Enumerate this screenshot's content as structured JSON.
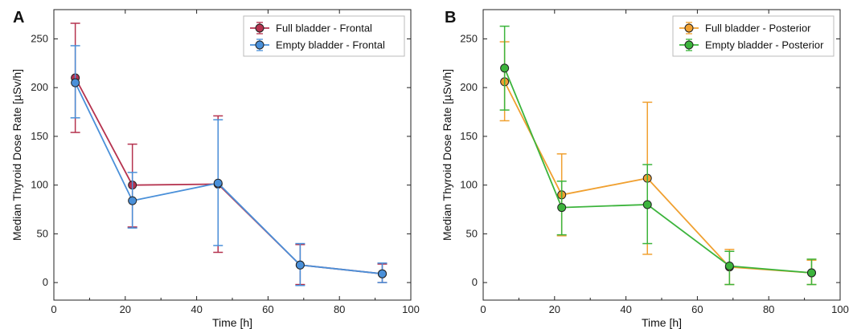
{
  "chart_data": [
    {
      "type": "line",
      "panel_label": "A",
      "xlabel": "Time [h]",
      "ylabel": "Median Thyroid Dose Rate [µSv/h]",
      "xlim": [
        0,
        100
      ],
      "ylim": [
        -18,
        280
      ],
      "xticks": [
        "0",
        "20",
        "40",
        "60",
        "80",
        "100"
      ],
      "yticks": [
        "0",
        "50",
        "100",
        "150",
        "200",
        "250"
      ],
      "legend_position": "top-right",
      "grid": false,
      "series": [
        {
          "name": "Full bladder - Frontal",
          "color": "#b5334f",
          "x": [
            6,
            22,
            46,
            69,
            92
          ],
          "y": [
            210,
            100,
            101,
            18,
            9
          ],
          "err_low": [
            154,
            57,
            31,
            -2,
            0
          ],
          "err_high": [
            266,
            142,
            171,
            39,
            19
          ]
        },
        {
          "name": "Empty bladder - Frontal",
          "color": "#4a90d9",
          "x": [
            6,
            22,
            46,
            69,
            92
          ],
          "y": [
            205,
            84,
            102,
            18,
            9
          ],
          "err_low": [
            169,
            56,
            38,
            -3,
            0
          ],
          "err_high": [
            243,
            113,
            167,
            40,
            20
          ]
        }
      ]
    },
    {
      "type": "line",
      "panel_label": "B",
      "xlabel": "Time [h]",
      "ylabel": "Median Thyroid Dose Rate [µSv/h]",
      "xlim": [
        0,
        100
      ],
      "ylim": [
        -18,
        280
      ],
      "xticks": [
        "0",
        "20",
        "40",
        "60",
        "80",
        "100"
      ],
      "yticks": [
        "0",
        "50",
        "100",
        "150",
        "200",
        "250"
      ],
      "legend_position": "top-right",
      "grid": false,
      "series": [
        {
          "name": "Full bladder - Posterior",
          "color": "#f0a030",
          "x": [
            6,
            22,
            46,
            69,
            92
          ],
          "y": [
            206,
            90,
            107,
            16,
            10
          ],
          "err_low": [
            166,
            48,
            29,
            -2,
            -2
          ],
          "err_high": [
            247,
            132,
            185,
            34,
            23
          ]
        },
        {
          "name": "Empty bladder - Posterior",
          "color": "#3cb43c",
          "x": [
            6,
            22,
            46,
            69,
            92
          ],
          "y": [
            220,
            77,
            80,
            17,
            10
          ],
          "err_low": [
            177,
            49,
            40,
            -2,
            -2
          ],
          "err_high": [
            263,
            104,
            121,
            32,
            24
          ]
        }
      ]
    }
  ]
}
